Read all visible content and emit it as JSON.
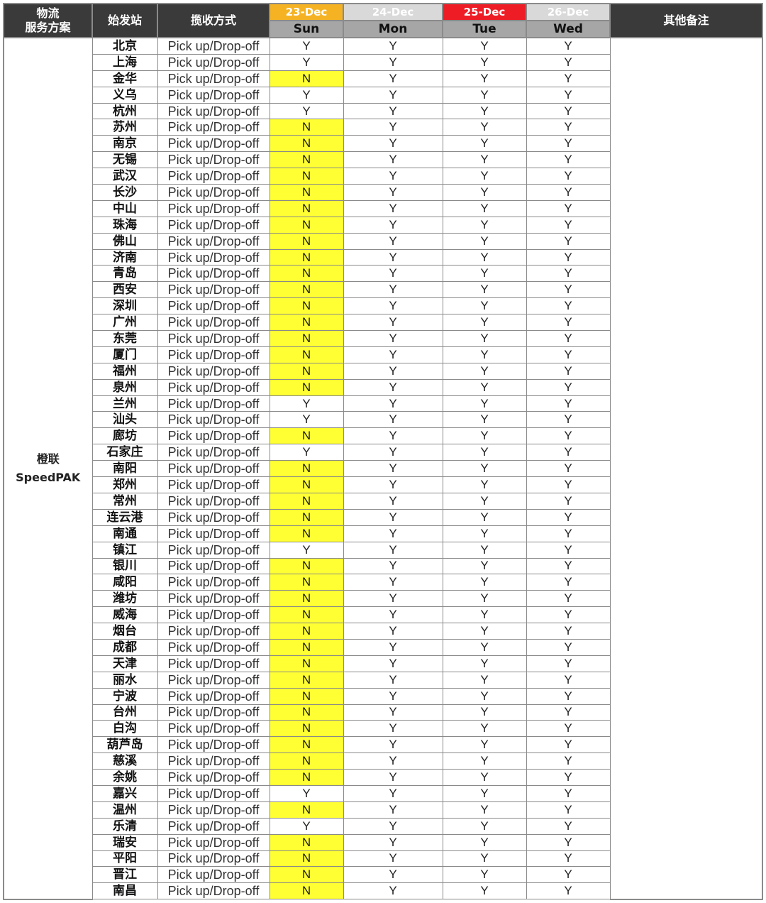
{
  "header": {
    "service_line1": "物流",
    "service_line2": "服务方案",
    "origin": "始发站",
    "method": "揽收方式",
    "notes": "其他备注",
    "dates": [
      {
        "date": "23-Dec",
        "day": "Sun",
        "color": "#f5b324",
        "text_color": "#ffffff"
      },
      {
        "date": "24-Dec",
        "day": "Mon",
        "color": "#d9d9d9",
        "text_color": "#ffffff"
      },
      {
        "date": "25-Dec",
        "day": "Tue",
        "color": "#ee1c25",
        "text_color": "#ffffff"
      },
      {
        "date": "26-Dec",
        "day": "Wed",
        "color": "#d9d9d9",
        "text_color": "#ffffff"
      }
    ]
  },
  "service": {
    "line1": "橙联",
    "line2": "SpeedPAK"
  },
  "highlight_color": "#ffff33",
  "rows": [
    {
      "city": "北京",
      "method": "Pick up/Drop-off",
      "values": [
        "Y",
        "Y",
        "Y",
        "Y"
      ]
    },
    {
      "city": "上海",
      "method": "Pick up/Drop-off",
      "values": [
        "Y",
        "Y",
        "Y",
        "Y"
      ]
    },
    {
      "city": "金华",
      "method": "Pick up/Drop-off",
      "values": [
        "N",
        "Y",
        "Y",
        "Y"
      ]
    },
    {
      "city": "义乌",
      "method": "Pick up/Drop-off",
      "values": [
        "Y",
        "Y",
        "Y",
        "Y"
      ]
    },
    {
      "city": "杭州",
      "method": "Pick up/Drop-off",
      "values": [
        "Y",
        "Y",
        "Y",
        "Y"
      ]
    },
    {
      "city": "苏州",
      "method": "Pick up/Drop-off",
      "values": [
        "N",
        "Y",
        "Y",
        "Y"
      ]
    },
    {
      "city": "南京",
      "method": "Pick up/Drop-off",
      "values": [
        "N",
        "Y",
        "Y",
        "Y"
      ]
    },
    {
      "city": "无锡",
      "method": "Pick up/Drop-off",
      "values": [
        "N",
        "Y",
        "Y",
        "Y"
      ]
    },
    {
      "city": "武汉",
      "method": "Pick up/Drop-off",
      "values": [
        "N",
        "Y",
        "Y",
        "Y"
      ]
    },
    {
      "city": "长沙",
      "method": "Pick up/Drop-off",
      "values": [
        "N",
        "Y",
        "Y",
        "Y"
      ]
    },
    {
      "city": "中山",
      "method": "Pick up/Drop-off",
      "values": [
        "N",
        "Y",
        "Y",
        "Y"
      ]
    },
    {
      "city": "珠海",
      "method": "Pick up/Drop-off",
      "values": [
        "N",
        "Y",
        "Y",
        "Y"
      ]
    },
    {
      "city": "佛山",
      "method": "Pick up/Drop-off",
      "values": [
        "N",
        "Y",
        "Y",
        "Y"
      ]
    },
    {
      "city": "济南",
      "method": "Pick up/Drop-off",
      "values": [
        "N",
        "Y",
        "Y",
        "Y"
      ]
    },
    {
      "city": "青岛",
      "method": "Pick up/Drop-off",
      "values": [
        "N",
        "Y",
        "Y",
        "Y"
      ]
    },
    {
      "city": "西安",
      "method": "Pick up/Drop-off",
      "values": [
        "N",
        "Y",
        "Y",
        "Y"
      ]
    },
    {
      "city": "深圳",
      "method": "Pick up/Drop-off",
      "values": [
        "N",
        "Y",
        "Y",
        "Y"
      ]
    },
    {
      "city": "广州",
      "method": "Pick up/Drop-off",
      "values": [
        "N",
        "Y",
        "Y",
        "Y"
      ]
    },
    {
      "city": "东莞",
      "method": "Pick up/Drop-off",
      "values": [
        "N",
        "Y",
        "Y",
        "Y"
      ]
    },
    {
      "city": "厦门",
      "method": "Pick up/Drop-off",
      "values": [
        "N",
        "Y",
        "Y",
        "Y"
      ]
    },
    {
      "city": "福州",
      "method": "Pick up/Drop-off",
      "values": [
        "N",
        "Y",
        "Y",
        "Y"
      ]
    },
    {
      "city": "泉州",
      "method": "Pick up/Drop-off",
      "values": [
        "N",
        "Y",
        "Y",
        "Y"
      ]
    },
    {
      "city": "兰州",
      "method": "Pick up/Drop-off",
      "values": [
        "Y",
        "Y",
        "Y",
        "Y"
      ]
    },
    {
      "city": "汕头",
      "method": "Pick up/Drop-off",
      "values": [
        "Y",
        "Y",
        "Y",
        "Y"
      ]
    },
    {
      "city": "廊坊",
      "method": "Pick up/Drop-off",
      "values": [
        "N",
        "Y",
        "Y",
        "Y"
      ]
    },
    {
      "city": "石家庄",
      "method": "Pick up/Drop-off",
      "values": [
        "Y",
        "Y",
        "Y",
        "Y"
      ]
    },
    {
      "city": "南阳",
      "method": "Pick up/Drop-off",
      "values": [
        "N",
        "Y",
        "Y",
        "Y"
      ]
    },
    {
      "city": "郑州",
      "method": "Pick up/Drop-off",
      "values": [
        "N",
        "Y",
        "Y",
        "Y"
      ]
    },
    {
      "city": "常州",
      "method": "Pick up/Drop-off",
      "values": [
        "N",
        "Y",
        "Y",
        "Y"
      ]
    },
    {
      "city": "连云港",
      "method": "Pick up/Drop-off",
      "values": [
        "N",
        "Y",
        "Y",
        "Y"
      ]
    },
    {
      "city": "南通",
      "method": "Pick up/Drop-off",
      "values": [
        "N",
        "Y",
        "Y",
        "Y"
      ]
    },
    {
      "city": "镇江",
      "method": "Pick up/Drop-off",
      "values": [
        "Y",
        "Y",
        "Y",
        "Y"
      ]
    },
    {
      "city": "银川",
      "method": "Pick up/Drop-off",
      "values": [
        "N",
        "Y",
        "Y",
        "Y"
      ]
    },
    {
      "city": "咸阳",
      "method": "Pick up/Drop-off",
      "values": [
        "N",
        "Y",
        "Y",
        "Y"
      ]
    },
    {
      "city": "潍坊",
      "method": "Pick up/Drop-off",
      "values": [
        "N",
        "Y",
        "Y",
        "Y"
      ]
    },
    {
      "city": "威海",
      "method": "Pick up/Drop-off",
      "values": [
        "N",
        "Y",
        "Y",
        "Y"
      ]
    },
    {
      "city": "烟台",
      "method": "Pick up/Drop-off",
      "values": [
        "N",
        "Y",
        "Y",
        "Y"
      ]
    },
    {
      "city": "成都",
      "method": "Pick up/Drop-off",
      "values": [
        "N",
        "Y",
        "Y",
        "Y"
      ]
    },
    {
      "city": "天津",
      "method": "Pick up/Drop-off",
      "values": [
        "N",
        "Y",
        "Y",
        "Y"
      ]
    },
    {
      "city": "丽水",
      "method": "Pick up/Drop-off",
      "values": [
        "N",
        "Y",
        "Y",
        "Y"
      ]
    },
    {
      "city": "宁波",
      "method": "Pick up/Drop-off",
      "values": [
        "N",
        "Y",
        "Y",
        "Y"
      ]
    },
    {
      "city": "台州",
      "method": "Pick up/Drop-off",
      "values": [
        "N",
        "Y",
        "Y",
        "Y"
      ]
    },
    {
      "city": "白沟",
      "method": "Pick up/Drop-off",
      "values": [
        "N",
        "Y",
        "Y",
        "Y"
      ]
    },
    {
      "city": "葫芦岛",
      "method": "Pick up/Drop-off",
      "values": [
        "N",
        "Y",
        "Y",
        "Y"
      ]
    },
    {
      "city": "慈溪",
      "method": "Pick up/Drop-off",
      "values": [
        "N",
        "Y",
        "Y",
        "Y"
      ]
    },
    {
      "city": "余姚",
      "method": "Pick up/Drop-off",
      "values": [
        "N",
        "Y",
        "Y",
        "Y"
      ]
    },
    {
      "city": "嘉兴",
      "method": "Pick up/Drop-off",
      "values": [
        "Y",
        "Y",
        "Y",
        "Y"
      ]
    },
    {
      "city": "温州",
      "method": "Pick up/Drop-off",
      "values": [
        "N",
        "Y",
        "Y",
        "Y"
      ]
    },
    {
      "city": "乐清",
      "method": "Pick up/Drop-off",
      "values": [
        "Y",
        "Y",
        "Y",
        "Y"
      ]
    },
    {
      "city": "瑞安",
      "method": "Pick up/Drop-off",
      "values": [
        "N",
        "Y",
        "Y",
        "Y"
      ]
    },
    {
      "city": "平阳",
      "method": "Pick up/Drop-off",
      "values": [
        "N",
        "Y",
        "Y",
        "Y"
      ]
    },
    {
      "city": "晋江",
      "method": "Pick up/Drop-off",
      "values": [
        "N",
        "Y",
        "Y",
        "Y"
      ]
    },
    {
      "city": "南昌",
      "method": "Pick up/Drop-off",
      "values": [
        "N",
        "Y",
        "Y",
        "Y"
      ]
    }
  ]
}
